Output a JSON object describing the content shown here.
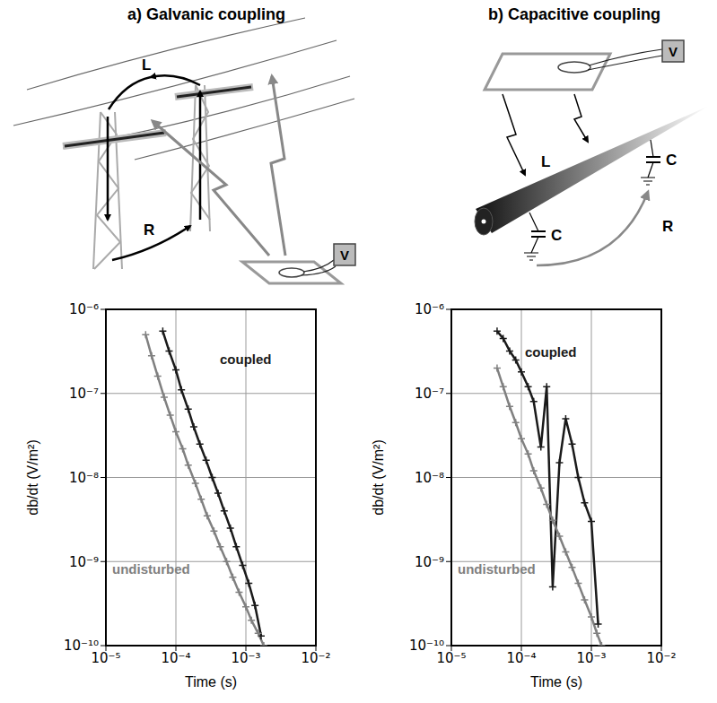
{
  "chart_data": [
    {
      "type": "line",
      "title": "a) Galvanic coupling",
      "x_label": "Time (s)",
      "y_label": "db/dt (V/m²)",
      "log": true,
      "grid": true,
      "xlim": [
        1e-05,
        0.01
      ],
      "xticks": [
        {
          "value": 1e-05,
          "label": "10⁻⁵"
        },
        {
          "value": 0.0001,
          "label": "10⁻⁴"
        },
        {
          "value": 0.001,
          "label": "10⁻³"
        },
        {
          "value": 0.01,
          "label": "10⁻²"
        }
      ],
      "ylim": [
        1e-10,
        1e-06
      ],
      "yticks": [
        {
          "value": 1e-10,
          "label": "10⁻¹⁰"
        },
        {
          "value": 1e-09,
          "label": "10⁻⁹"
        },
        {
          "value": 1e-08,
          "label": "10⁻⁸"
        },
        {
          "value": 1e-07,
          "label": "10⁻⁷"
        },
        {
          "value": 1e-06,
          "label": "10⁻⁶"
        }
      ],
      "series": [
        {
          "name": "coupled",
          "color": "#1a1a1a",
          "marker": "plus",
          "x": [
            6.5e-05,
            8e-05,
            0.0001,
            0.00012,
            0.00015,
            0.00018,
            0.00022,
            0.00027,
            0.00033,
            0.0004,
            0.00049,
            0.0006,
            0.00073,
            0.0009,
            0.0011,
            0.00135,
            0.00165
          ],
          "values": [
            5.5e-07,
            3.2e-07,
            1.9e-07,
            1.1e-07,
            6.5e-08,
            4e-08,
            2.5e-08,
            1.6e-08,
            1e-08,
            6.5e-09,
            4e-09,
            2.5e-09,
            1.5e-09,
            9e-10,
            5.5e-10,
            3e-10,
            1.3e-10
          ]
        },
        {
          "name": "undisturbed",
          "color": "#808080",
          "marker": "plus",
          "x": [
            3.7e-05,
            4.5e-05,
            5.5e-05,
            6.8e-05,
            8.3e-05,
            0.0001,
            0.000125,
            0.00015,
            0.00019,
            0.00023,
            0.00028,
            0.00035,
            0.00043,
            0.00053,
            0.00065,
            0.0008,
            0.001,
            0.0012,
            0.0015,
            0.0018
          ],
          "values": [
            5e-07,
            2.8e-07,
            1.6e-07,
            9e-08,
            5.5e-08,
            3.5e-08,
            2.2e-08,
            1.4e-08,
            8.5e-09,
            5.5e-09,
            3.5e-09,
            2.3e-09,
            1.5e-09,
            1e-09,
            6.5e-10,
            4.3e-10,
            2.9e-10,
            2e-10,
            1.4e-10,
            1e-10
          ]
        }
      ]
    },
    {
      "type": "line",
      "title": "b) Capacitive coupling",
      "x_label": "Time (s)",
      "y_label": "db/dt (V/m²)",
      "log": true,
      "grid": true,
      "xlim": [
        1e-05,
        0.01
      ],
      "xticks": [
        {
          "value": 1e-05,
          "label": "10⁻⁵"
        },
        {
          "value": 0.0001,
          "label": "10⁻⁴"
        },
        {
          "value": 0.001,
          "label": "10⁻³"
        },
        {
          "value": 0.01,
          "label": "10⁻²"
        }
      ],
      "ylim": [
        1e-10,
        1e-06
      ],
      "yticks": [
        {
          "value": 1e-10,
          "label": "10⁻¹⁰"
        },
        {
          "value": 1e-09,
          "label": "10⁻⁹"
        },
        {
          "value": 1e-08,
          "label": "10⁻⁸"
        },
        {
          "value": 1e-07,
          "label": "10⁻⁷"
        },
        {
          "value": 1e-06,
          "label": "10⁻⁶"
        }
      ],
      "series": [
        {
          "name": "coupled",
          "color": "#1a1a1a",
          "marker": "plus",
          "x": [
            4.5e-05,
            5.5e-05,
            6.8e-05,
            8.3e-05,
            0.0001,
            0.000125,
            0.00015,
            0.00019,
            0.00023,
            0.00028,
            0.00035,
            0.00043,
            0.00053,
            0.00065,
            0.0008,
            0.001,
            0.00125
          ],
          "values": [
            5.5e-07,
            4.5e-07,
            3.2e-07,
            2.5e-07,
            1.8e-07,
            1.2e-07,
            8e-08,
            2.3e-08,
            1.2e-07,
            5e-10,
            1.5e-08,
            5e-08,
            2.5e-08,
            1e-08,
            5e-09,
            3e-09,
            1.8e-10
          ]
        },
        {
          "name": "undisturbed",
          "color": "#808080",
          "marker": "plus",
          "x": [
            4.5e-05,
            5.5e-05,
            6.8e-05,
            8.3e-05,
            0.0001,
            0.000125,
            0.00015,
            0.00019,
            0.00023,
            0.00028,
            0.00035,
            0.00043,
            0.00053,
            0.00065,
            0.0008,
            0.001,
            0.0012,
            0.0014
          ],
          "values": [
            2e-07,
            1.2e-07,
            7e-08,
            4.5e-08,
            2.9e-08,
            1.9e-08,
            1.2e-08,
            7.5e-09,
            4.8e-09,
            3.1e-09,
            2e-09,
            1.3e-09,
            8.5e-10,
            5.5e-10,
            3.5e-10,
            2.2e-10,
            1.4e-10,
            1e-10
          ]
        }
      ]
    }
  ],
  "diagrams": [
    {
      "labels": [
        "L",
        "R",
        "V"
      ]
    },
    {
      "labels": [
        "L",
        "C",
        "C",
        "R",
        "V"
      ]
    }
  ]
}
